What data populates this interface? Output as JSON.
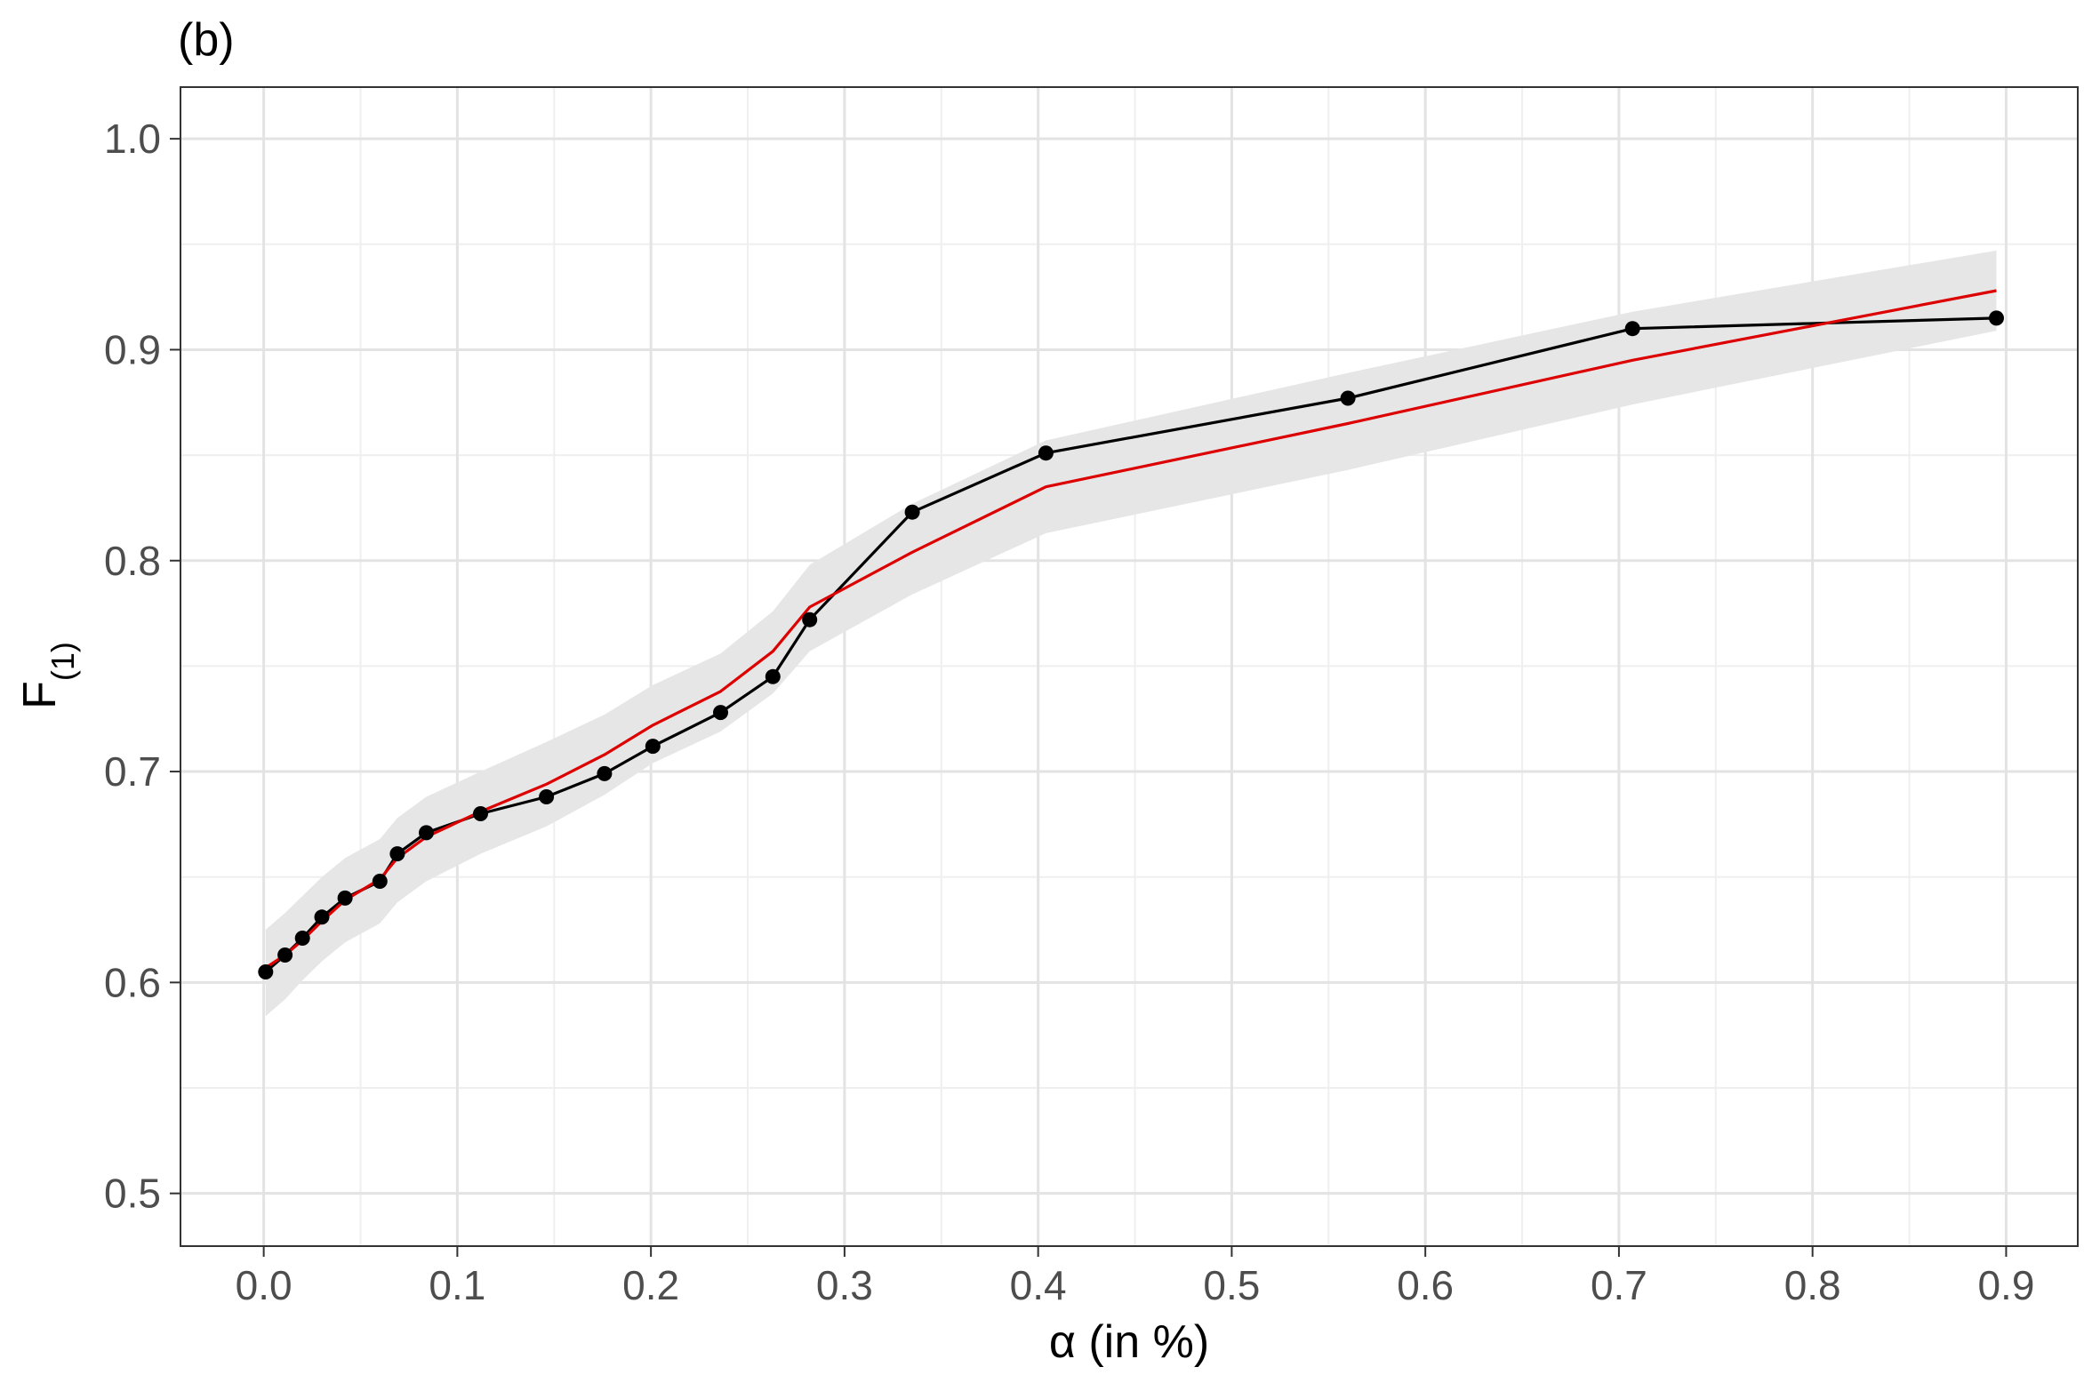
{
  "chart_data": {
    "type": "line",
    "panel_tag": "(b)",
    "xlabel": {
      "symbol": "α",
      "rest": " (in %)"
    },
    "ylabel": {
      "base": "F",
      "subscript": "(1)"
    },
    "xlim": [
      -0.043,
      0.937
    ],
    "ylim": [
      0.475,
      1.0245
    ],
    "x_ticks": [
      {
        "value": 0.0,
        "label": "0.0"
      },
      {
        "value": 0.1,
        "label": "0.1"
      },
      {
        "value": 0.2,
        "label": "0.2"
      },
      {
        "value": 0.3,
        "label": "0.3"
      },
      {
        "value": 0.4,
        "label": "0.4"
      },
      {
        "value": 0.5,
        "label": "0.5"
      },
      {
        "value": 0.6,
        "label": "0.6"
      },
      {
        "value": 0.7,
        "label": "0.7"
      },
      {
        "value": 0.8,
        "label": "0.8"
      },
      {
        "value": 0.9,
        "label": "0.9"
      }
    ],
    "y_ticks": [
      {
        "value": 0.5,
        "label": "0.5"
      },
      {
        "value": 0.6,
        "label": "0.6"
      },
      {
        "value": 0.7,
        "label": "0.7"
      },
      {
        "value": 0.8,
        "label": "0.8"
      },
      {
        "value": 0.9,
        "label": "0.9"
      },
      {
        "value": 1.0,
        "label": "1.0"
      }
    ],
    "grid": true,
    "colors": {
      "observed": "#000000",
      "fitted": "#dd0000",
      "band": "#e6e6e6",
      "grid_major": "#e3e3e3",
      "grid_minor": "#efefef",
      "frame": "#333333"
    },
    "series": [
      {
        "style": "line+points",
        "x": [
          0.001,
          0.011,
          0.02,
          0.03,
          0.042,
          0.06,
          0.069,
          0.084,
          0.112,
          0.146,
          0.176,
          0.201,
          0.236,
          0.263,
          0.282,
          0.335,
          0.404,
          0.56,
          0.707,
          0.895
        ],
        "y": [
          0.605,
          0.613,
          0.621,
          0.631,
          0.64,
          0.648,
          0.661,
          0.671,
          0.68,
          0.688,
          0.699,
          0.712,
          0.728,
          0.745,
          0.772,
          0.823,
          0.851,
          0.877,
          0.91,
          0.915
        ]
      },
      {
        "style": "line",
        "x": [
          0.001,
          0.011,
          0.02,
          0.03,
          0.042,
          0.06,
          0.069,
          0.084,
          0.112,
          0.146,
          0.176,
          0.201,
          0.236,
          0.263,
          0.282,
          0.335,
          0.404,
          0.56,
          0.707,
          0.895
        ],
        "y": [
          0.607,
          0.613,
          0.62,
          0.629,
          0.639,
          0.649,
          0.659,
          0.669,
          0.681,
          0.694,
          0.708,
          0.722,
          0.738,
          0.757,
          0.778,
          0.804,
          0.835,
          0.865,
          0.895,
          0.928
        ]
      }
    ],
    "band": {
      "x": [
        0.001,
        0.011,
        0.02,
        0.03,
        0.042,
        0.06,
        0.069,
        0.084,
        0.112,
        0.146,
        0.176,
        0.201,
        0.236,
        0.263,
        0.282,
        0.335,
        0.404,
        0.56,
        0.707,
        0.895
      ],
      "lower": [
        0.584,
        0.592,
        0.601,
        0.61,
        0.619,
        0.628,
        0.638,
        0.648,
        0.661,
        0.674,
        0.689,
        0.704,
        0.719,
        0.737,
        0.757,
        0.784,
        0.813,
        0.843,
        0.874,
        0.909
      ],
      "upper": [
        0.625,
        0.633,
        0.641,
        0.65,
        0.659,
        0.668,
        0.678,
        0.688,
        0.7,
        0.714,
        0.727,
        0.741,
        0.756,
        0.776,
        0.798,
        0.827,
        0.857,
        0.889,
        0.918,
        0.947
      ]
    }
  }
}
